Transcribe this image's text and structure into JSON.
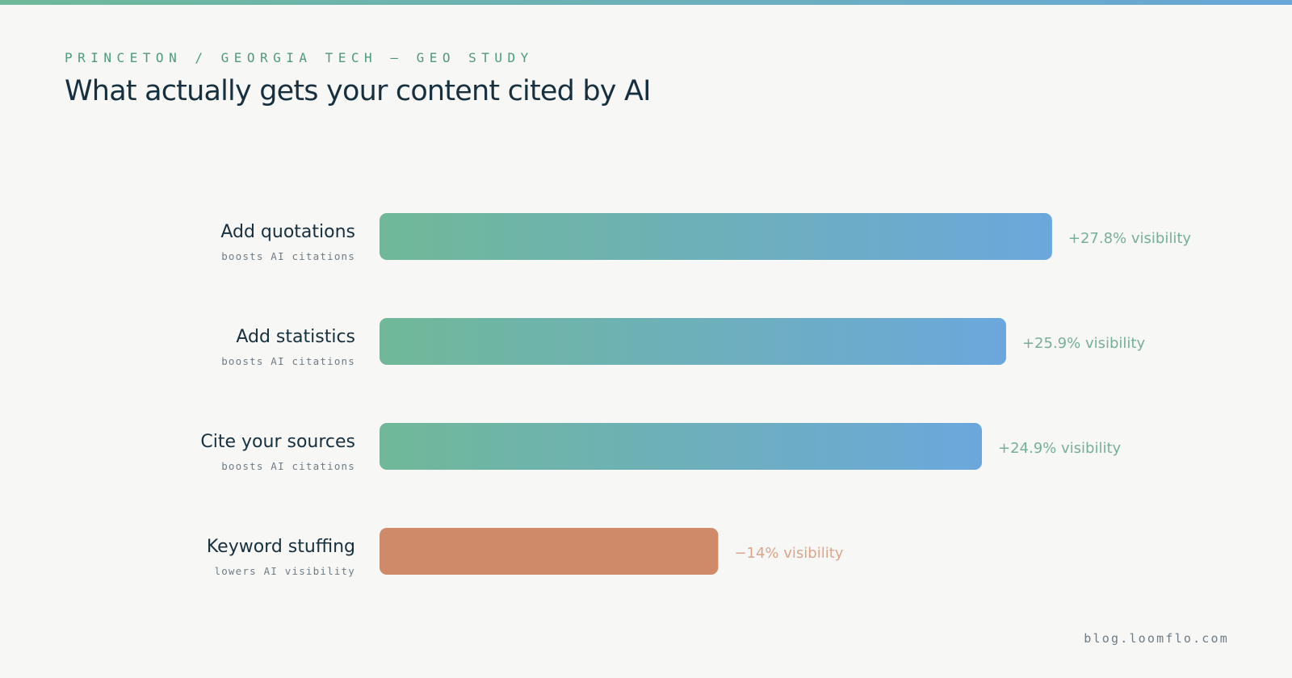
{
  "header": {
    "eyebrow": "PRINCETON / GEORGIA TECH — GEO STUDY",
    "title": "What actually gets your content cited by AI"
  },
  "footer": {
    "site": "blog.loomflo.com"
  },
  "colors": {
    "positive_start": "#70b898",
    "positive_end": "#6ca7dc",
    "negative": "#cf8a6a",
    "positive_label": "#77b098",
    "negative_label": "#dca58b",
    "label": "#16303f",
    "sublabel": "#6f7c86"
  },
  "chart_data": {
    "type": "bar",
    "orientation": "horizontal",
    "categories": [
      "Add quotations",
      "Add statistics",
      "Cite your sources",
      "Keyword stuffing"
    ],
    "sublabels": [
      "boosts AI citations",
      "boosts AI citations",
      "boosts AI citations",
      "lowers AI visibility"
    ],
    "values": [
      27.8,
      25.9,
      24.9,
      -14
    ],
    "value_labels": [
      "+27.8% visibility",
      "+25.9% visibility",
      "+24.9% visibility",
      "−14% visibility"
    ],
    "unit": "%",
    "grid": false,
    "legend": "none"
  }
}
